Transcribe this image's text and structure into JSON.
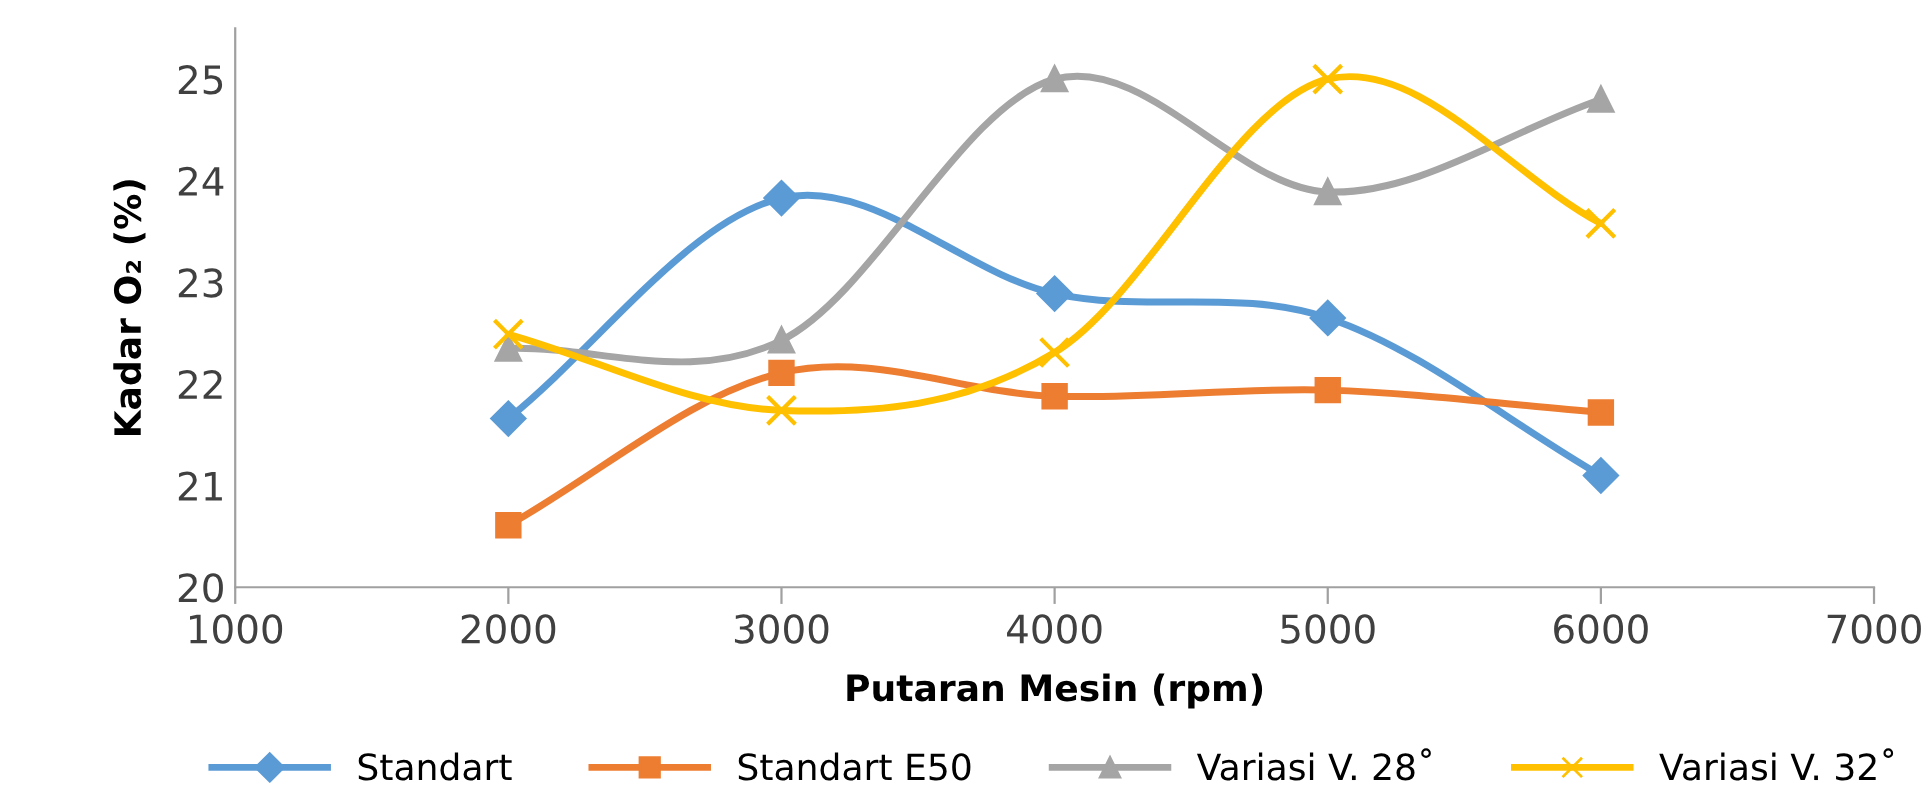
{
  "chart_data": {
    "type": "line",
    "xlabel": "Putaran Mesin (rpm)",
    "ylabel": "Kadar O₂ (%)",
    "x": [
      2000,
      3000,
      4000,
      5000,
      6000
    ],
    "xlim": [
      1000,
      7000
    ],
    "xticks": [
      1000,
      2000,
      3000,
      4000,
      5000,
      6000,
      7000
    ],
    "ylim": [
      20,
      25.5
    ],
    "yticks": [
      20,
      21,
      22,
      23,
      24,
      25
    ],
    "grid": false,
    "legend": "bottom",
    "line_style": "solid",
    "series": [
      {
        "name": "Standart",
        "color": "#5b9bd5",
        "marker": "diamond",
        "values": [
          21.66,
          23.83,
          22.89,
          22.65,
          21.1
        ]
      },
      {
        "name": "Standart E50",
        "color": "#ed7d31",
        "marker": "square",
        "values": [
          20.61,
          22.11,
          21.88,
          21.94,
          21.72
        ]
      },
      {
        "name": "Variasi V. 28˚",
        "color": "#a5a5a5",
        "marker": "triangle",
        "values": [
          22.35,
          22.43,
          25.0,
          23.89,
          24.8
        ]
      },
      {
        "name": "Variasi V. 32˚",
        "color": "#ffc000",
        "marker": "cross",
        "values": [
          22.49,
          21.74,
          22.31,
          25.0,
          23.58
        ]
      }
    ]
  }
}
